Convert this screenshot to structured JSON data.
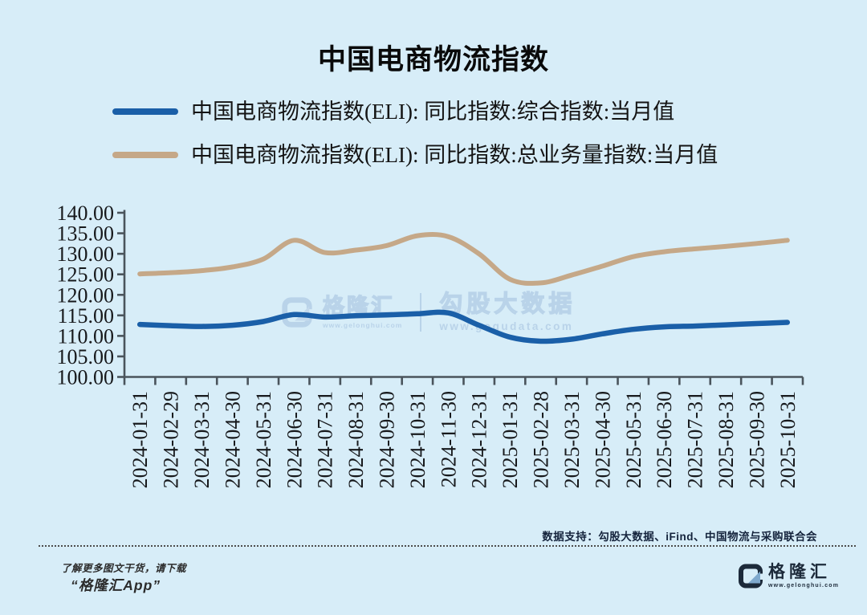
{
  "title": "中国电商物流指数",
  "chart_data": {
    "type": "line",
    "title": "中国电商物流指数",
    "x": [
      "2024-01-31",
      "2024-02-29",
      "2024-03-31",
      "2024-04-30",
      "2024-05-31",
      "2024-06-30",
      "2024-07-31",
      "2024-08-31",
      "2024-09-30",
      "2024-10-31",
      "2024-11-30",
      "2024-12-31",
      "2025-01-31",
      "2025-02-28",
      "2025-03-31",
      "2025-04-30",
      "2025-05-31",
      "2025-06-30",
      "2025-07-31",
      "2025-08-31",
      "2025-09-30",
      "2025-10-31"
    ],
    "series": [
      {
        "name": "中国电商物流指数(ELI): 同比指数:综合指数:当月值",
        "color": "#1a5fa8",
        "values": [
          112.8,
          112.5,
          112.3,
          112.6,
          113.5,
          115.2,
          114.6,
          114.9,
          115.1,
          115.4,
          115.6,
          112.6,
          109.7,
          108.7,
          109.2,
          110.5,
          111.6,
          112.2,
          112.4,
          112.7,
          113.0,
          113.3
        ]
      },
      {
        "name": "中国电商物流指数(ELI): 同比指数:总业务量指数:当月值",
        "color": "#c5a888",
        "values": [
          125.1,
          125.4,
          125.9,
          126.8,
          128.7,
          133.3,
          130.3,
          130.9,
          132.0,
          134.4,
          134.2,
          130.0,
          123.8,
          122.9,
          124.8,
          127.0,
          129.3,
          130.5,
          131.2,
          131.8,
          132.5,
          133.3
        ]
      }
    ],
    "ylim": [
      100,
      140
    ],
    "ytick_step": 5,
    "ytick_labels": [
      "140.00",
      "135.00",
      "130.00",
      "125.00",
      "120.00",
      "115.00",
      "110.00",
      "105.00",
      "100.00"
    ],
    "grid": "off",
    "legend_position": "top-left",
    "xlabel": "",
    "ylabel": ""
  },
  "watermark": {
    "brand": "格隆汇",
    "brand_url": "www.gelonghui.com",
    "partner": "勾股大数据",
    "partner_url": "www.gogudata.com"
  },
  "footer": {
    "data_support": "数据支持：勾股大数据、iFind、中国物流与采购联合会",
    "promo_line1": "了解更多图文干货，请下载",
    "promo_line2": "“格隆汇App”",
    "logo_text": "格隆汇",
    "logo_url": "www.gelonghui.com"
  },
  "colors": {
    "background": "#d7edf8",
    "axis": "#4a545c",
    "tick_label": "#17191c",
    "watermark": "#b9d3e9",
    "logo_navy": "#1c2a3a",
    "logo_arrow": "#7fa9cd"
  }
}
